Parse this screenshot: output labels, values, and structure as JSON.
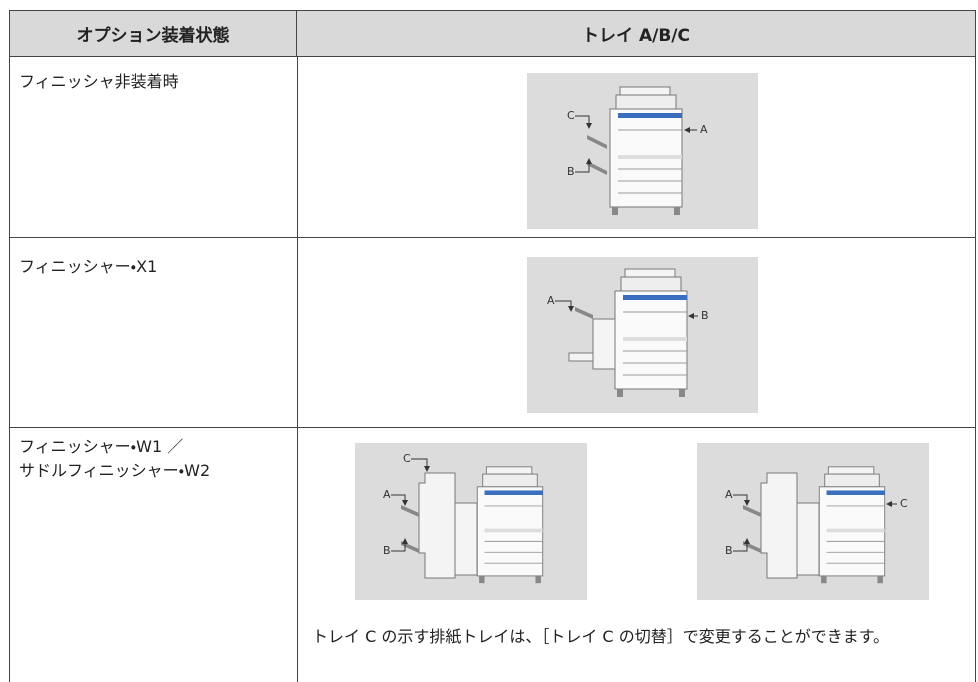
{
  "table": {
    "header": [
      "オプション装着状態",
      "トレイ A/B/C"
    ],
    "rows": [
      {
        "option": [
          "フィニッシャ非装着時"
        ],
        "figures": [
          {
            "labels": [
              "C",
              "A",
              "B"
            ]
          }
        ]
      },
      {
        "option": [
          "フィニッシャー・X1"
        ],
        "figures": [
          {
            "labels": [
              "A",
              "B"
            ]
          }
        ]
      },
      {
        "option": [
          "フィニッシャー・W1 ／",
          "サドルフィニッシャー・W2"
        ],
        "figures": [
          {
            "labels": [
              "C",
              "A",
              "B"
            ]
          },
          {
            "labels": [
              "A",
              "B",
              "C"
            ]
          }
        ],
        "note": "トレイ C の示す排紙トレイは、［トレイ C の切替］で変更することができます。"
      }
    ]
  }
}
